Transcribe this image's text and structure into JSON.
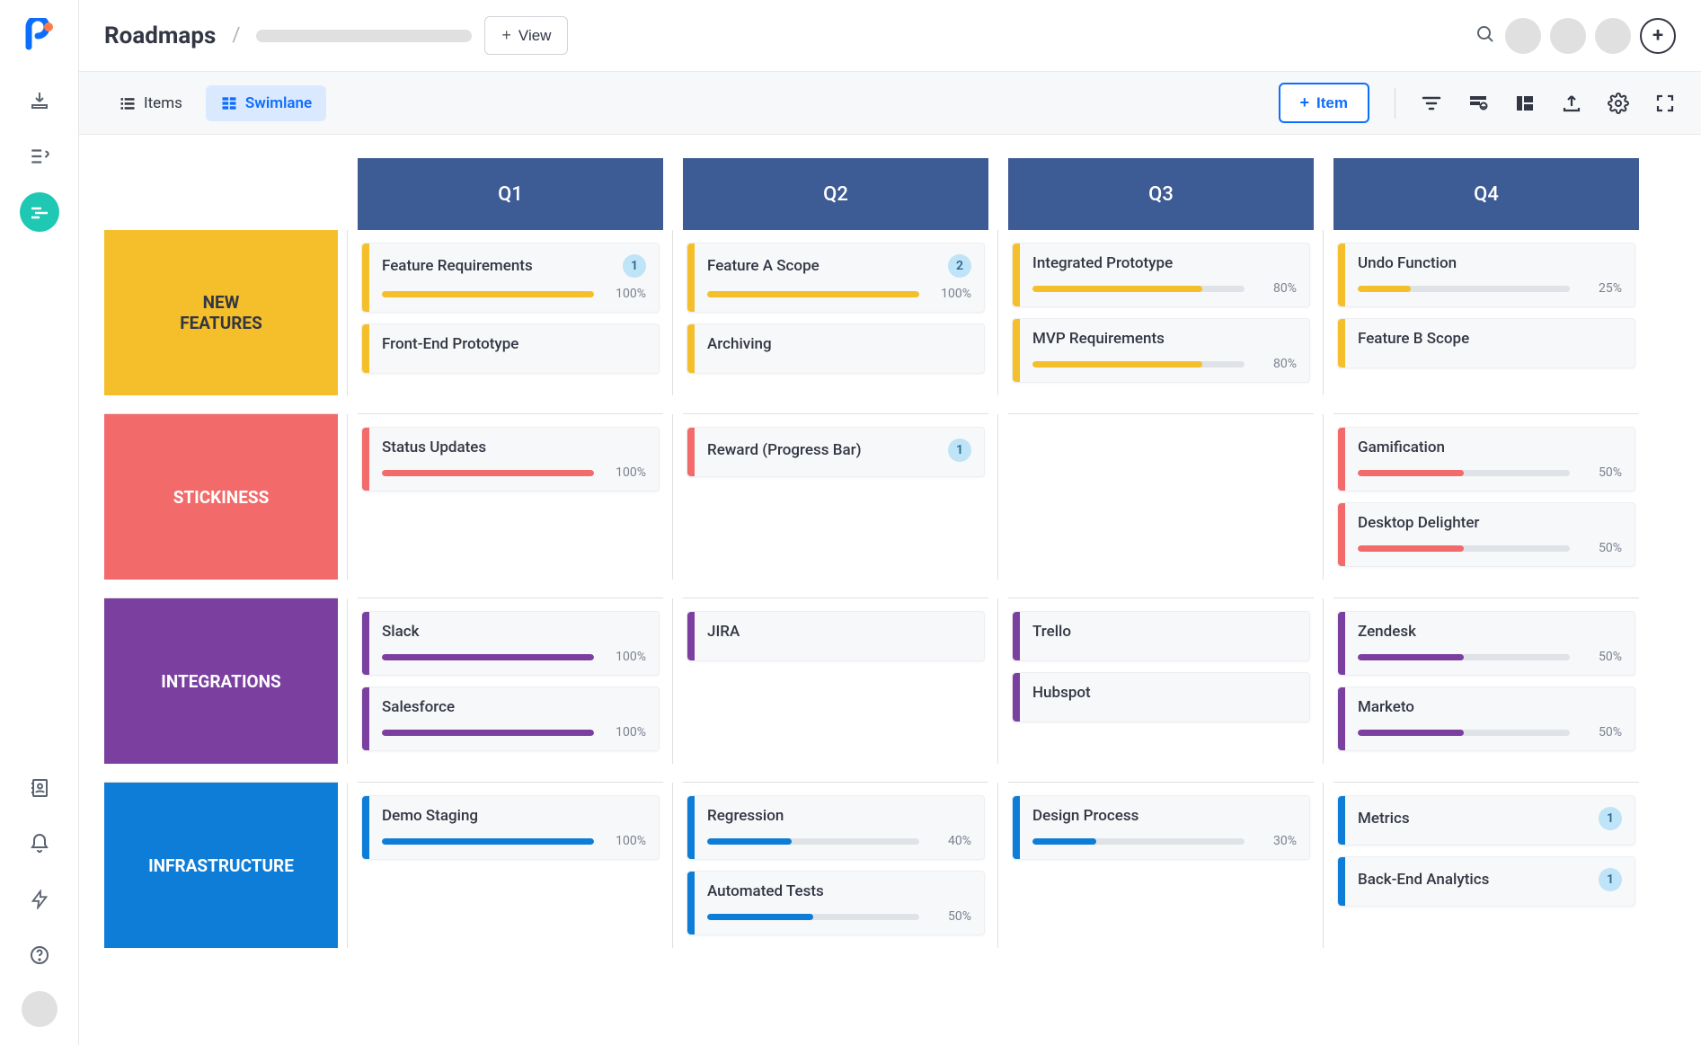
{
  "header": {
    "title": "Roadmaps",
    "view_button": "View",
    "add_label": "+"
  },
  "tabs": {
    "items": "Items",
    "swimlane": "Swimlane"
  },
  "add_item": "Item",
  "quarters": [
    "Q1",
    "Q2",
    "Q3",
    "Q4"
  ],
  "colors": {
    "quarter_header": "#3d5b94",
    "lanes": {
      "new_features": "#f4bf2a",
      "stickiness": "#f26a6a",
      "integrations": "#7b3fa0",
      "infrastructure": "#0d7dd8"
    },
    "badge_bg": "#bfe3f7"
  },
  "lanes": [
    {
      "id": "new_features",
      "label": "NEW FEATURES",
      "label_text_color": "#333744",
      "cells": [
        [
          {
            "title": "Feature Requirements",
            "badge": "1",
            "progress": 100
          },
          {
            "title": "Front-End Prototype"
          }
        ],
        [
          {
            "title": "Feature A Scope",
            "badge": "2",
            "progress": 100
          },
          {
            "title": "Archiving"
          }
        ],
        [
          {
            "title": "Integrated Prototype",
            "progress": 80
          },
          {
            "title": "MVP Requirements",
            "progress": 80
          }
        ],
        [
          {
            "title": "Undo Function",
            "progress": 25
          },
          {
            "title": "Feature B Scope"
          }
        ]
      ]
    },
    {
      "id": "stickiness",
      "label": "STICKINESS",
      "label_text_color": "#ffffff",
      "cells": [
        [
          {
            "title": "Status Updates",
            "progress": 100
          }
        ],
        [
          {
            "title": "Reward (Progress Bar)",
            "badge": "1"
          }
        ],
        [],
        [
          {
            "title": "Gamification",
            "progress": 50
          },
          {
            "title": "Desktop Delighter",
            "progress": 50
          }
        ]
      ]
    },
    {
      "id": "integrations",
      "label": "INTEGRATIONS",
      "label_text_color": "#ffffff",
      "cells": [
        [
          {
            "title": "Slack",
            "progress": 100
          },
          {
            "title": "Salesforce",
            "progress": 100
          }
        ],
        [
          {
            "title": "JIRA"
          }
        ],
        [
          {
            "title": "Trello"
          },
          {
            "title": "Hubspot"
          }
        ],
        [
          {
            "title": "Zendesk",
            "progress": 50
          },
          {
            "title": "Marketo",
            "progress": 50
          }
        ]
      ]
    },
    {
      "id": "infrastructure",
      "label": "INFRASTRUCTURE",
      "label_text_color": "#ffffff",
      "cells": [
        [
          {
            "title": "Demo Staging",
            "progress": 100
          }
        ],
        [
          {
            "title": "Regression",
            "progress": 40
          },
          {
            "title": "Automated Tests",
            "progress": 50
          }
        ],
        [
          {
            "title": "Design Process",
            "progress": 30
          }
        ],
        [
          {
            "title": "Metrics",
            "badge": "1"
          },
          {
            "title": "Back-End Analytics",
            "badge": "1"
          }
        ]
      ]
    }
  ]
}
